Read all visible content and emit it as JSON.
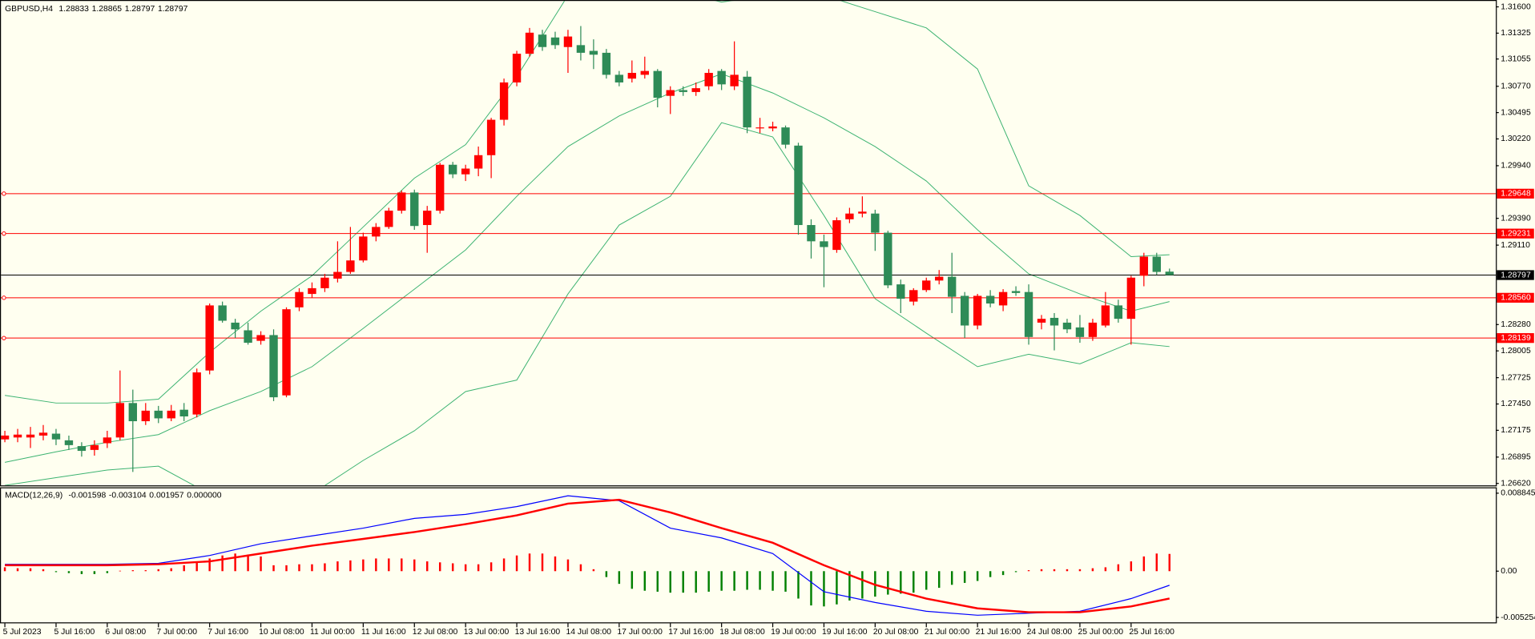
{
  "chart_data": [
    {
      "type": "candlestick",
      "title": "GBPUSD,H4",
      "header_values": [
        1.28833,
        1.28865,
        1.28797,
        1.28797
      ],
      "up_color": "#ff0000",
      "down_color": "#2e8b57",
      "xlim": [
        -0.38,
        116.5
      ],
      "ylim": [
        1.2662,
        1.316
      ],
      "xticks": [
        {
          "value": 0,
          "label": "5 Jul 2023"
        },
        {
          "value": 4,
          "label": "5 Jul 16:00"
        },
        {
          "value": 8,
          "label": "6 Jul 08:00"
        },
        {
          "value": 12,
          "label": "7 Jul 00:00"
        },
        {
          "value": 16,
          "label": "7 Jul 16:00"
        },
        {
          "value": 20,
          "label": "10 Jul 08:00"
        },
        {
          "value": 24,
          "label": "11 Jul 00:00"
        },
        {
          "value": 28,
          "label": "11 Jul 16:00"
        },
        {
          "value": 32,
          "label": "12 Jul 08:00"
        },
        {
          "value": 36,
          "label": "13 Jul 00:00"
        },
        {
          "value": 40,
          "label": "13 Jul 16:00"
        },
        {
          "value": 44,
          "label": "14 Jul 08:00"
        },
        {
          "value": 48,
          "label": "17 Jul 00:00"
        },
        {
          "value": 52,
          "label": "17 Jul 16:00"
        },
        {
          "value": 56,
          "label": "18 Jul 08:00"
        },
        {
          "value": 60,
          "label": "19 Jul 00:00"
        },
        {
          "value": 64,
          "label": "19 Jul 16:00"
        },
        {
          "value": 68,
          "label": "20 Jul 08:00"
        },
        {
          "value": 72,
          "label": "21 Jul 00:00"
        },
        {
          "value": 76,
          "label": "21 Jul 16:00"
        },
        {
          "value": 80,
          "label": "24 Jul 08:00"
        },
        {
          "value": 84,
          "label": "25 Jul 00:00"
        },
        {
          "value": 88,
          "label": "25 Jul 16:00"
        }
      ],
      "yticks": [
        {
          "value": 1.316,
          "label": "1.31600"
        },
        1.31325,
        1.31055,
        {
          "value": 1.3077,
          "label": "1.30770"
        },
        1.30495,
        {
          "value": 1.3022,
          "label": "1.30220"
        },
        {
          "value": 1.2994,
          "label": "1.29940"
        },
        {
          "value": 1.2939,
          "label": "1.29390"
        },
        {
          "value": 1.2911,
          "label": "1.29110"
        },
        {
          "value": 1.2828,
          "label": "1.28280"
        },
        1.28005,
        1.27725,
        {
          "value": 1.2745,
          "label": "1.27450"
        },
        1.27175,
        1.26895,
        {
          "value": 1.2662,
          "label": "1.26620"
        }
      ],
      "levels": [
        1.29648,
        1.29231,
        {
          "value": 1.2856,
          "label": "1.28560"
        },
        1.28139
      ],
      "level_color": "#ff0000",
      "current_price": 1.28797,
      "open": [
        1.2708,
        1.271,
        1.271,
        1.2712,
        1.2714,
        1.2707,
        1.2701,
        1.2697,
        1.2704,
        1.271,
        1.2746,
        1.2727,
        1.2738,
        1.273,
        1.2739,
        1.2734,
        1.278,
        1.2848,
        1.283,
        1.2822,
        1.2811,
        1.2817,
        1.2754,
        1.2846,
        1.286,
        1.2866,
        1.2876,
        1.2883,
        1.2895,
        1.292,
        1.293,
        1.2947,
        1.2966,
        1.2932,
        1.2947,
        1.2995,
        1.2985,
        1.2991,
        1.3005,
        1.3042,
        1.3081,
        1.3111,
        1.3131,
        1.3128,
        1.3118,
        1.312,
        1.3114,
        1.3112,
        1.3089,
        1.3085,
        1.3089,
        1.3093,
        1.3067,
        1.3073,
        1.3071,
        1.3077,
        1.3093,
        1.3077,
        1.3087,
        1.3033,
        1.3033,
        1.3034,
        1.3015,
        1.2932,
        1.2915,
        1.2906,
        1.2938,
        1.2944,
        1.2944,
        1.2924,
        1.287,
        1.2852,
        1.2864,
        1.2874,
        1.2878,
        1.2858,
        1.2827,
        1.2858,
        1.2848,
        1.2863,
        1.2862,
        1.283,
        1.2835,
        1.283,
        1.2825,
        1.2815,
        1.2827,
        1.2848,
        1.2834,
        1.2879,
        1.2899,
        1.28833
      ],
      "high": [
        1.2717,
        1.2719,
        1.2721,
        1.2723,
        1.2719,
        1.2712,
        1.2705,
        1.2707,
        1.2717,
        1.278,
        1.276,
        1.2746,
        1.2743,
        1.2744,
        1.2746,
        1.2782,
        1.285,
        1.2852,
        1.2834,
        1.283,
        1.2821,
        1.2823,
        1.2846,
        1.2866,
        1.2872,
        1.2881,
        1.2915,
        1.293,
        1.2924,
        1.2934,
        1.295,
        1.2968,
        1.2969,
        1.2952,
        1.2997,
        1.2998,
        1.2995,
        1.3014,
        1.3044,
        1.3085,
        1.3114,
        1.3138,
        1.3136,
        1.3134,
        1.3136,
        1.314,
        1.3126,
        1.3116,
        1.3093,
        1.3104,
        1.3108,
        1.3095,
        1.3077,
        1.3077,
        1.3081,
        1.3095,
        1.3095,
        1.3124,
        1.3093,
        1.3044,
        1.304,
        1.3036,
        1.3018,
        1.2938,
        1.2922,
        1.294,
        1.295,
        1.2962,
        1.2948,
        1.2926,
        1.2875,
        1.2866,
        1.2877,
        1.2885,
        1.2903,
        1.2862,
        1.286,
        1.2864,
        1.2865,
        1.2868,
        1.287,
        1.2838,
        1.284,
        1.2834,
        1.2838,
        1.2834,
        1.2862,
        1.2854,
        1.2879,
        1.2903,
        1.2903,
        1.28865
      ],
      "low": [
        1.2705,
        1.2705,
        1.2699,
        1.2707,
        1.2702,
        1.2697,
        1.269,
        1.2691,
        1.2699,
        1.2707,
        1.2674,
        1.2723,
        1.2725,
        1.2727,
        1.2727,
        1.2731,
        1.2776,
        1.283,
        1.2814,
        1.2807,
        1.2807,
        1.2748,
        1.2752,
        1.2842,
        1.2856,
        1.2862,
        1.2872,
        1.2881,
        1.2893,
        1.2915,
        1.2928,
        1.2944,
        1.2927,
        1.2903,
        1.2944,
        1.2981,
        1.2978,
        1.2983,
        1.2981,
        1.3036,
        1.3077,
        1.3108,
        1.3114,
        1.3116,
        1.3091,
        1.3104,
        1.3095,
        1.3085,
        1.3077,
        1.3081,
        1.3085,
        1.3055,
        1.3048,
        1.3067,
        1.3067,
        1.3073,
        1.3073,
        1.3073,
        1.3028,
        1.3028,
        1.303,
        1.3012,
        1.2922,
        1.2897,
        1.2867,
        1.2903,
        1.2934,
        1.294,
        1.2905,
        1.2866,
        1.284,
        1.2848,
        1.2862,
        1.287,
        1.284,
        1.2814,
        1.2823,
        1.2846,
        1.2842,
        1.2858,
        1.2807,
        1.2823,
        1.2801,
        1.2819,
        1.2809,
        1.2811,
        1.2825,
        1.283,
        1.2807,
        1.2868,
        1.288,
        1.28797
      ],
      "close": [
        1.2712,
        1.2713,
        1.2713,
        1.2715,
        1.2708,
        1.2702,
        1.2696,
        1.2702,
        1.271,
        1.2746,
        1.2727,
        1.2738,
        1.273,
        1.2738,
        1.2732,
        1.2778,
        1.2848,
        1.2832,
        1.2823,
        1.2809,
        1.2817,
        1.2752,
        1.2844,
        1.2862,
        1.2866,
        1.2877,
        1.2883,
        1.2895,
        1.292,
        1.293,
        1.2947,
        1.2966,
        1.2931,
        1.2947,
        1.2995,
        1.2985,
        1.2991,
        1.3005,
        1.3042,
        1.3081,
        1.3111,
        1.3133,
        1.3118,
        1.312,
        1.3129,
        1.3112,
        1.311,
        1.3089,
        1.3081,
        1.3091,
        1.3093,
        1.3065,
        1.3073,
        1.3071,
        1.3075,
        1.3091,
        1.3079,
        1.3089,
        1.3034,
        1.3034,
        1.3035,
        1.3016,
        1.2932,
        1.2915,
        1.2909,
        1.2937,
        1.2944,
        1.2946,
        1.2924,
        1.2869,
        1.2855,
        1.2864,
        1.2874,
        1.2878,
        1.2857,
        1.2827,
        1.2858,
        1.285,
        1.2862,
        1.2861,
        1.2815,
        1.2834,
        1.2827,
        1.2823,
        1.2815,
        1.283,
        1.2848,
        1.2834,
        1.2877,
        1.2899,
        1.2883,
        1.28797
      ],
      "bands": [
        {
          "color": "#3cb371",
          "x": [
            0,
            4,
            8,
            12,
            16,
            20,
            24,
            28,
            32,
            36,
            40,
            44,
            48,
            52,
            56,
            60,
            64,
            68,
            72,
            76,
            80,
            84,
            88,
            91
          ],
          "values": [
            1.2754,
            1.2746,
            1.2746,
            1.275,
            1.2799,
            1.2842,
            1.2879,
            1.293,
            1.2981,
            1.3016,
            1.3087,
            1.3172,
            1.3198,
            1.3177,
            1.3165,
            1.3172,
            1.3172,
            1.3155,
            1.3138,
            1.3095,
            1.2973,
            1.2942,
            1.2899,
            1.2901
          ]
        },
        {
          "color": "#3cb371",
          "x": [
            0,
            4,
            8,
            12,
            16,
            20,
            24,
            28,
            32,
            36,
            40,
            44,
            48,
            52,
            56,
            60,
            64,
            68,
            72,
            76,
            80,
            84,
            88,
            91
          ],
          "values": [
            1.2684,
            1.2695,
            1.2705,
            1.2713,
            1.2738,
            1.2758,
            1.2784,
            1.2824,
            1.2865,
            1.2906,
            1.2962,
            1.3014,
            1.3046,
            1.307,
            1.309,
            1.307,
            1.3044,
            1.3014,
            1.2978,
            1.2927,
            1.2881,
            1.286,
            1.2842,
            1.2852
          ]
        },
        {
          "color": "#3cb371",
          "x": [
            0,
            4,
            8,
            12,
            16,
            20,
            24,
            28,
            32,
            36,
            40,
            44,
            48,
            52,
            56,
            60,
            64,
            68,
            72,
            76,
            80,
            84,
            88,
            91
          ],
          "values": [
            1.266,
            1.2668,
            1.2676,
            1.268,
            1.2651,
            1.2625,
            1.2651,
            1.2686,
            1.2717,
            1.2758,
            1.277,
            1.286,
            1.2932,
            1.2962,
            1.3039,
            1.3024,
            1.2942,
            1.2855,
            1.2819,
            1.2784,
            1.2797,
            1.2787,
            1.2809,
            1.2805
          ]
        }
      ]
    },
    {
      "type": "macd",
      "title": "MACD(12,26,9)",
      "header_values": [
        -0.001598,
        -0.003104,
        0.001957,
        {
          "value": 0,
          "label": "0.000000"
        }
      ],
      "xlim": [
        -0.38,
        116.5
      ],
      "ylim": [
        -0.005254,
        0.008845
      ],
      "yticks": [
        0.008845,
        {
          "value": 0,
          "label": "0.00"
        },
        -0.005254
      ],
      "histogram": {
        "up_color": "#ff0000",
        "down_color": "#008000",
        "values": [
          0.00044,
          0.00033,
          0.00033,
          0.00022,
          -0.00011,
          -0.00022,
          -0.00033,
          -0.00033,
          -0.00022,
          5e-05,
          0.00011,
          0.00011,
          0.00022,
          0.00033,
          0.00067,
          0.001,
          0.00144,
          0.00178,
          0.002,
          0.00189,
          0.00167,
          0.00067,
          0.00067,
          0.00078,
          0.00078,
          0.00089,
          0.00111,
          0.00122,
          0.00133,
          0.00144,
          0.00144,
          0.00144,
          0.00133,
          0.00111,
          0.001,
          0.00089,
          0.00078,
          0.00078,
          0.001,
          0.00144,
          0.00178,
          0.002,
          0.002,
          0.00167,
          0.00133,
          0.00078,
          0.00022,
          -0.00067,
          -0.00144,
          -0.002,
          -0.00222,
          -0.00233,
          -0.00244,
          -0.00244,
          -0.00244,
          -0.00233,
          -0.00222,
          -0.00222,
          -0.00211,
          -0.00211,
          -0.00222,
          -0.00233,
          -0.00311,
          -0.00389,
          -0.004,
          -0.00377,
          -0.00333,
          -0.00311,
          -0.00289,
          -0.00266,
          -0.00255,
          -0.00244,
          -0.00211,
          -0.00189,
          -0.00155,
          -0.00133,
          -0.00111,
          -0.00067,
          -0.00044,
          -0.00011,
          0.00011,
          0.00022,
          0.00022,
          0.00022,
          0.00022,
          0.00033,
          0.00044,
          0.00078,
          0.00111,
          0.00167,
          0.002,
          0.001957
        ]
      },
      "series": [
        {
          "color": "#0000ff",
          "x": [
            0,
            4,
            8,
            12,
            16,
            20,
            24,
            28,
            32,
            36,
            40,
            44,
            48,
            52,
            56,
            60,
            64,
            68,
            72,
            76,
            80,
            84,
            88,
            91
          ],
          "values": [
            0.00078,
            0.00078,
            0.00078,
            0.00089,
            0.00178,
            0.00311,
            0.004,
            0.00488,
            0.00599,
            0.00644,
            0.00733,
            0.00855,
            0.00799,
            0.00488,
            0.00377,
            0.002,
            -0.00233,
            -0.00355,
            -0.00455,
            -0.005,
            -0.00477,
            -0.00455,
            -0.00311,
            -0.001598
          ]
        },
        {
          "color": "#ff0000",
          "x": [
            0,
            4,
            8,
            12,
            16,
            20,
            24,
            28,
            32,
            36,
            40,
            44,
            48,
            52,
            56,
            60,
            64,
            68,
            72,
            76,
            80,
            84,
            88,
            91
          ],
          "values": [
            0.00067,
            0.00067,
            0.00067,
            0.00078,
            0.00111,
            0.002,
            0.00289,
            0.00366,
            0.00444,
            0.00533,
            0.00633,
            0.00766,
            0.0081,
            0.00666,
            0.00488,
            0.00322,
            0.00067,
            -0.00155,
            -0.00311,
            -0.00422,
            -0.00466,
            -0.00466,
            -0.004,
            -0.003104
          ]
        }
      ]
    }
  ]
}
